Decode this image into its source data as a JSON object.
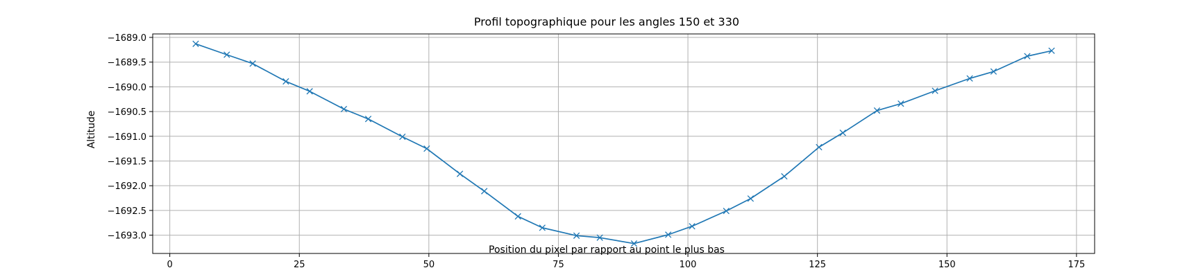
{
  "chart_data": {
    "type": "line",
    "title": "Profil topographique pour les angles 150 et 330",
    "xlabel": "Position du pixel par rapport au point le plus bas",
    "ylabel": "Altitude",
    "xlim": [
      -3.3,
      178.5
    ],
    "ylim": [
      -1693.37,
      -1688.93
    ],
    "xticks": [
      0,
      25,
      50,
      75,
      100,
      125,
      150,
      175
    ],
    "xtick_labels": [
      "0",
      "25",
      "50",
      "75",
      "100",
      "125",
      "150",
      "175"
    ],
    "yticks": [
      -1689.0,
      -1689.5,
      -1690.0,
      -1690.5,
      -1691.0,
      -1691.5,
      -1692.0,
      -1692.5,
      -1693.0
    ],
    "ytick_labels": [
      "−1689.0",
      "−1689.5",
      "−1690.0",
      "−1690.5",
      "−1691.0",
      "−1691.5",
      "−1692.0",
      "−1692.5",
      "−1693.0"
    ],
    "grid": true,
    "color": "#1f77b4",
    "marker": "x",
    "series": [
      {
        "x": [
          5,
          11,
          16,
          22.4,
          27,
          33.6,
          38.3,
          44.9,
          49.6,
          56,
          60.7,
          67.2,
          71.9,
          78.5,
          83,
          89.6,
          96.2,
          100.8,
          107.4,
          112.1,
          118.6,
          125.3,
          129.9,
          136.5,
          141.1,
          147.7,
          154.4,
          159,
          165.5,
          170.2
        ],
        "y": [
          -1689.13,
          -1689.35,
          -1689.53,
          -1689.89,
          -1690.09,
          -1690.45,
          -1690.65,
          -1691.01,
          -1691.25,
          -1691.76,
          -1692.11,
          -1692.62,
          -1692.85,
          -1693.01,
          -1693.05,
          -1693.17,
          -1692.99,
          -1692.82,
          -1692.51,
          -1692.26,
          -1691.81,
          -1691.22,
          -1690.93,
          -1690.48,
          -1690.34,
          -1690.08,
          -1689.83,
          -1689.69,
          -1689.38,
          -1689.27
        ]
      }
    ]
  }
}
